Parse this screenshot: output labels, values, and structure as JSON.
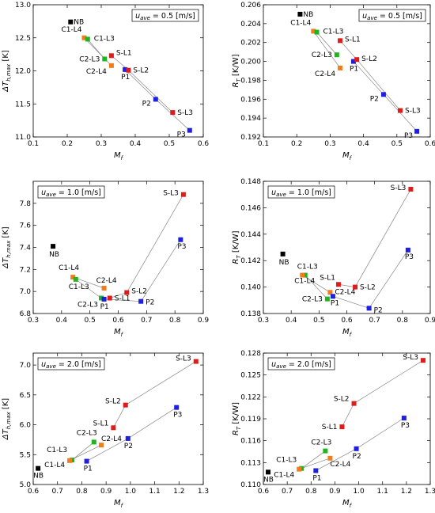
{
  "page": {
    "background": "#ffffff"
  },
  "colors": {
    "S": "#dd1c1c",
    "P": "#1f1fe0",
    "C1": "#f07d1a",
    "C2": "#1fb51f",
    "NB": "#000000",
    "line": "#888888"
  },
  "chart_data": [
    {
      "id": "top-left",
      "type": "scatter",
      "title": "",
      "xlabel": "Mf",
      "ylabel": "ΔTh,max [K]",
      "xlim": [
        0.1,
        0.6
      ],
      "ylim": [
        11.0,
        13.0
      ],
      "xticks": [
        "0.1",
        "0.2",
        "0.3",
        "0.4",
        "0.5",
        "0.6"
      ],
      "yticks": [
        "11.0",
        "11.5",
        "12.0",
        "12.5",
        "13.0"
      ],
      "legend": "u_ave = 0.5 [m/s]",
      "legend_position": "top-right",
      "points": [
        {
          "label": "NB",
          "x": 0.21,
          "y": 12.74,
          "group": "NB"
        },
        {
          "label": "C1-L4",
          "x": 0.25,
          "y": 12.5,
          "group": "C1"
        },
        {
          "label": "C1-L3",
          "x": 0.26,
          "y": 12.48,
          "group": "C2"
        },
        {
          "label": "C2-L3",
          "x": 0.31,
          "y": 12.18,
          "group": "C2"
        },
        {
          "label": "C2-L4",
          "x": 0.33,
          "y": 12.08,
          "group": "C1"
        },
        {
          "label": "S-L1",
          "x": 0.33,
          "y": 12.23,
          "group": "S"
        },
        {
          "label": "P1",
          "x": 0.37,
          "y": 12.02,
          "group": "P"
        },
        {
          "label": "S-L2",
          "x": 0.38,
          "y": 12.01,
          "group": "S"
        },
        {
          "label": "P2",
          "x": 0.46,
          "y": 11.57,
          "group": "P"
        },
        {
          "label": "S-L3",
          "x": 0.51,
          "y": 11.37,
          "group": "S"
        },
        {
          "label": "P3",
          "x": 0.56,
          "y": 11.1,
          "group": "P"
        }
      ],
      "lines": [
        [
          "S-L1",
          "S-L2",
          "S-L3"
        ],
        [
          "P1",
          "P2",
          "P3"
        ],
        [
          "C1-L4",
          "C2-L4"
        ],
        [
          "C1-L3",
          "C2-L3"
        ]
      ]
    },
    {
      "id": "top-right",
      "type": "scatter",
      "title": "",
      "xlabel": "Mf",
      "ylabel": "RT [K/W]",
      "xlim": [
        0.1,
        0.6
      ],
      "ylim": [
        0.192,
        0.206
      ],
      "xticks": [
        "0.1",
        "0.2",
        "0.3",
        "0.4",
        "0.5",
        "0.6"
      ],
      "yticks": [
        "0.192",
        "0.194",
        "0.196",
        "0.198",
        "0.200",
        "0.202",
        "0.204",
        "0.206"
      ],
      "legend": "u_ave = 0.5 [m/s]",
      "legend_position": "top-right",
      "points": [
        {
          "label": "NB",
          "x": 0.21,
          "y": 0.205,
          "group": "NB"
        },
        {
          "label": "C1-L4",
          "x": 0.25,
          "y": 0.2032,
          "group": "C1"
        },
        {
          "label": "C1-L3",
          "x": 0.26,
          "y": 0.2031,
          "group": "C2"
        },
        {
          "label": "C2-L3",
          "x": 0.32,
          "y": 0.2007,
          "group": "C2"
        },
        {
          "label": "C2-L4",
          "x": 0.33,
          "y": 0.1993,
          "group": "C1"
        },
        {
          "label": "S-L1",
          "x": 0.33,
          "y": 0.2022,
          "group": "S"
        },
        {
          "label": "P1",
          "x": 0.37,
          "y": 0.2,
          "group": "P"
        },
        {
          "label": "S-L2",
          "x": 0.38,
          "y": 0.2002,
          "group": "S"
        },
        {
          "label": "P2",
          "x": 0.46,
          "y": 0.1965,
          "group": "P"
        },
        {
          "label": "S-L3",
          "x": 0.51,
          "y": 0.1948,
          "group": "S"
        },
        {
          "label": "P3",
          "x": 0.56,
          "y": 0.1926,
          "group": "P"
        }
      ],
      "lines": [
        [
          "S-L1",
          "S-L2",
          "S-L3"
        ],
        [
          "P1",
          "P2",
          "P3"
        ],
        [
          "C1-L4",
          "C2-L4"
        ],
        [
          "C1-L3",
          "C2-L3"
        ]
      ]
    },
    {
      "id": "mid-left",
      "type": "scatter",
      "title": "",
      "xlabel": "Mf",
      "ylabel": "ΔTh,max [K]",
      "xlim": [
        0.3,
        0.9
      ],
      "ylim": [
        6.8,
        8.0
      ],
      "xticks": [
        "0.3",
        "0.4",
        "0.5",
        "0.6",
        "0.7",
        "0.8",
        "0.9"
      ],
      "yticks": [
        "6.8",
        "7.0",
        "7.2",
        "7.4",
        "7.6",
        "7.8"
      ],
      "legend": "u_ave = 1.0 [m/s]",
      "legend_position": "top-left",
      "points": [
        {
          "label": "NB",
          "x": 0.37,
          "y": 7.41,
          "group": "NB"
        },
        {
          "label": "C1-L4",
          "x": 0.44,
          "y": 7.13,
          "group": "C1"
        },
        {
          "label": "C1-L3",
          "x": 0.45,
          "y": 7.11,
          "group": "C2"
        },
        {
          "label": "C2-L4",
          "x": 0.55,
          "y": 7.03,
          "group": "C1"
        },
        {
          "label": "C2-L3",
          "x": 0.54,
          "y": 6.94,
          "group": "C2"
        },
        {
          "label": "P1",
          "x": 0.55,
          "y": 6.93,
          "group": "P"
        },
        {
          "label": "S-L1",
          "x": 0.57,
          "y": 6.94,
          "group": "S"
        },
        {
          "label": "S-L2",
          "x": 0.63,
          "y": 6.99,
          "group": "S"
        },
        {
          "label": "P2",
          "x": 0.68,
          "y": 6.91,
          "group": "P"
        },
        {
          "label": "S-L3",
          "x": 0.83,
          "y": 7.88,
          "group": "S"
        },
        {
          "label": "P3",
          "x": 0.82,
          "y": 7.47,
          "group": "P"
        }
      ],
      "lines": [
        [
          "S-L1",
          "S-L2",
          "S-L3"
        ],
        [
          "P1",
          "P2",
          "P3"
        ],
        [
          "C1-L4",
          "C2-L4"
        ],
        [
          "C1-L3",
          "C2-L3"
        ]
      ]
    },
    {
      "id": "mid-right",
      "type": "scatter",
      "title": "",
      "xlabel": "Mf",
      "ylabel": "RT [K/W]",
      "xlim": [
        0.3,
        0.9
      ],
      "ylim": [
        0.138,
        0.148
      ],
      "xticks": [
        "0.3",
        "0.4",
        "0.5",
        "0.6",
        "0.7",
        "0.8",
        "0.9"
      ],
      "yticks": [
        "0.138",
        "0.140",
        "0.142",
        "0.144",
        "0.146",
        "0.148"
      ],
      "legend": "u_ave = 1.0 [m/s]",
      "legend_position": "top-left",
      "points": [
        {
          "label": "NB",
          "x": 0.37,
          "y": 0.1425,
          "group": "NB"
        },
        {
          "label": "C1-L3",
          "x": 0.45,
          "y": 0.1409,
          "group": "C2"
        },
        {
          "label": "C1-L4",
          "x": 0.44,
          "y": 0.1409,
          "group": "C1"
        },
        {
          "label": "C2-L4",
          "x": 0.54,
          "y": 0.1396,
          "group": "C1"
        },
        {
          "label": "C2-L3",
          "x": 0.53,
          "y": 0.1391,
          "group": "C2"
        },
        {
          "label": "P1",
          "x": 0.55,
          "y": 0.1393,
          "group": "P"
        },
        {
          "label": "S-L1",
          "x": 0.57,
          "y": 0.1402,
          "group": "S"
        },
        {
          "label": "S-L2",
          "x": 0.63,
          "y": 0.14,
          "group": "S"
        },
        {
          "label": "P2",
          "x": 0.68,
          "y": 0.1384,
          "group": "P"
        },
        {
          "label": "S-L3",
          "x": 0.83,
          "y": 0.1474,
          "group": "S"
        },
        {
          "label": "P3",
          "x": 0.82,
          "y": 0.1428,
          "group": "P"
        }
      ],
      "lines": [
        [
          "S-L1",
          "S-L2",
          "S-L3"
        ],
        [
          "P1",
          "P2",
          "P3"
        ],
        [
          "C1-L4",
          "C2-L4"
        ],
        [
          "C1-L3",
          "C2-L3"
        ]
      ]
    },
    {
      "id": "bottom-left",
      "type": "scatter",
      "title": "",
      "xlabel": "Mf",
      "ylabel": "ΔTh,max [K]",
      "xlim": [
        0.6,
        1.3
      ],
      "ylim": [
        5.0,
        7.2
      ],
      "xticks": [
        "0.6",
        "0.7",
        "0.8",
        "0.9",
        "1.0",
        "1.1",
        "1.2",
        "1.3"
      ],
      "yticks": [
        "5.0",
        "5.5",
        "6.0",
        "6.5",
        "7.0"
      ],
      "legend": "u_ave = 2.0 [m/s]",
      "legend_position": "top-left",
      "points": [
        {
          "label": "NB",
          "x": 0.62,
          "y": 5.27,
          "group": "NB"
        },
        {
          "label": "C1-L3",
          "x": 0.76,
          "y": 5.41,
          "group": "C2"
        },
        {
          "label": "C1-L4",
          "x": 0.75,
          "y": 5.4,
          "group": "C1"
        },
        {
          "label": "P1",
          "x": 0.82,
          "y": 5.39,
          "group": "P"
        },
        {
          "label": "C2-L3",
          "x": 0.85,
          "y": 5.71,
          "group": "C2"
        },
        {
          "label": "C2-L4",
          "x": 0.88,
          "y": 5.66,
          "group": "C1"
        },
        {
          "label": "S-L1",
          "x": 0.93,
          "y": 5.95,
          "group": "S"
        },
        {
          "label": "S-L2",
          "x": 0.98,
          "y": 6.33,
          "group": "S"
        },
        {
          "label": "P2",
          "x": 0.99,
          "y": 5.77,
          "group": "P"
        },
        {
          "label": "P3",
          "x": 1.19,
          "y": 6.29,
          "group": "P"
        },
        {
          "label": "S-L3",
          "x": 1.27,
          "y": 7.06,
          "group": "S"
        }
      ],
      "lines": [
        [
          "S-L1",
          "S-L2",
          "S-L3"
        ],
        [
          "P1",
          "P2",
          "P3"
        ],
        [
          "C1-L4",
          "C2-L4"
        ],
        [
          "C1-L3",
          "C2-L3"
        ]
      ]
    },
    {
      "id": "bottom-right",
      "type": "scatter",
      "title": "",
      "xlabel": "Mf",
      "ylabel": "RT [K/W]",
      "xlim": [
        0.6,
        1.3
      ],
      "ylim": [
        0.11,
        0.128
      ],
      "xticks": [
        "0.6",
        "0.7",
        "0.8",
        "0.9",
        "1.0",
        "1.1",
        "1.2",
        "1.3"
      ],
      "yticks": [
        "0.110",
        "0.113",
        "0.116",
        "0.119",
        "0.122",
        "0.125",
        "0.128"
      ],
      "legend": "u_ave = 2.0 [m/s]",
      "legend_position": "top-left",
      "points": [
        {
          "label": "NB",
          "x": 0.62,
          "y": 0.1117,
          "group": "NB"
        },
        {
          "label": "C1-L3",
          "x": 0.76,
          "y": 0.1122,
          "group": "C2"
        },
        {
          "label": "C1-L4",
          "x": 0.75,
          "y": 0.1121,
          "group": "C1"
        },
        {
          "label": "P1",
          "x": 0.82,
          "y": 0.1119,
          "group": "P"
        },
        {
          "label": "C2-L3",
          "x": 0.86,
          "y": 0.1146,
          "group": "C2"
        },
        {
          "label": "C2-L4",
          "x": 0.88,
          "y": 0.1136,
          "group": "C1"
        },
        {
          "label": "S-L1",
          "x": 0.93,
          "y": 0.1179,
          "group": "S"
        },
        {
          "label": "S-L2",
          "x": 0.98,
          "y": 0.1211,
          "group": "S"
        },
        {
          "label": "P2",
          "x": 0.99,
          "y": 0.1149,
          "group": "P"
        },
        {
          "label": "P3",
          "x": 1.19,
          "y": 0.1191,
          "group": "P"
        },
        {
          "label": "S-L3",
          "x": 1.27,
          "y": 0.127,
          "group": "S"
        }
      ],
      "lines": [
        [
          "S-L1",
          "S-L2",
          "S-L3"
        ],
        [
          "P1",
          "P2",
          "P3"
        ],
        [
          "C1-L4",
          "C2-L4"
        ],
        [
          "C1-L3",
          "C2-L3"
        ]
      ]
    }
  ]
}
